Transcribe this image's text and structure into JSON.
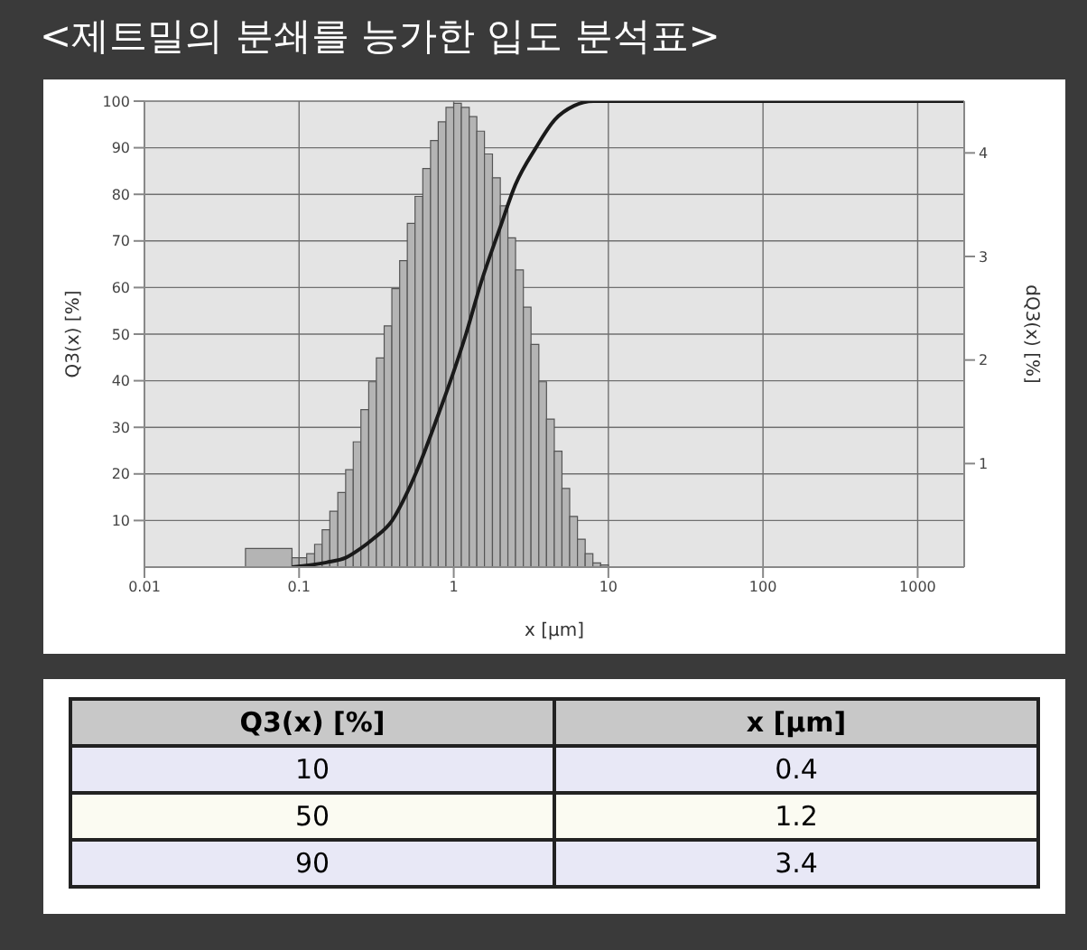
{
  "chart_data": {
    "type": "histogram",
    "title": "<제트밀의 분쇄를 능가한 입도 분석표>",
    "xlabel": "x [µm]",
    "ylabel": "Q3(x) [%]",
    "y2label": "dQ3(x) [%]",
    "log": "x",
    "xlim": [
      0.01,
      2000
    ],
    "xticks": [
      0.01,
      0.1,
      1,
      10,
      100,
      1000
    ],
    "ylim": [
      0,
      100
    ],
    "yticks": [
      10,
      20,
      30,
      40,
      50,
      60,
      70,
      80,
      90,
      100
    ],
    "y2lim": [
      0,
      4.5
    ],
    "y2ticks": [
      1,
      2,
      3,
      4
    ],
    "grid": true,
    "legend": false,
    "series": [
      {
        "axis": "y2",
        "color": "#b4b4b4",
        "bins": [
          0.045,
          0.09,
          0.1,
          0.112,
          0.126,
          0.141,
          0.158,
          0.178,
          0.2,
          0.224,
          0.251,
          0.282,
          0.316,
          0.355,
          0.398,
          0.447,
          0.501,
          0.562,
          0.631,
          0.708,
          0.794,
          0.891,
          1,
          1.12,
          1.26,
          1.41,
          1.58,
          1.78,
          2,
          2.24,
          2.51,
          2.82,
          3.16,
          3.55,
          3.98,
          4.47,
          5.01,
          5.62,
          6.31,
          7.08,
          7.94,
          8.91,
          10
        ],
        "values": [
          0.18,
          0.09,
          0.09,
          0.13,
          0.22,
          0.36,
          0.54,
          0.72,
          0.94,
          1.21,
          1.52,
          1.79,
          2.02,
          2.33,
          2.69,
          2.96,
          3.32,
          3.58,
          3.85,
          4.12,
          4.3,
          4.44,
          4.48,
          4.44,
          4.35,
          4.21,
          3.99,
          3.76,
          3.49,
          3.18,
          2.87,
          2.51,
          2.15,
          1.79,
          1.43,
          1.12,
          0.76,
          0.49,
          0.27,
          0.13,
          0.04,
          0.02
        ]
      },
      {
        "type": "line",
        "axis": "y",
        "color": "#1a1a1a",
        "x": [
          0.09,
          0.15,
          0.2,
          0.25,
          0.3,
          0.4,
          0.5,
          0.6,
          0.8,
          1,
          1.2,
          1.5,
          2,
          2.5,
          3.4,
          4.5,
          6,
          8,
          2000
        ],
        "values": [
          0,
          1,
          2,
          4,
          6,
          10,
          16,
          22,
          33,
          42,
          50,
          61,
          73,
          82,
          90,
          96,
          99,
          100,
          100
        ]
      }
    ],
    "annotations": [
      "Q3(x) [%]",
      "x [µm]",
      "10",
      "0.4",
      "50",
      "1.2",
      "90",
      "3.4"
    ]
  }
}
